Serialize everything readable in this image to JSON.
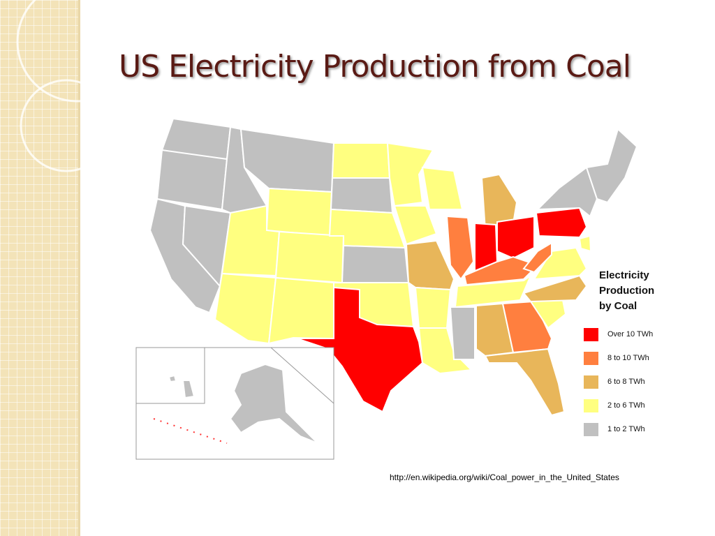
{
  "title": "US Electricity Production from Coal",
  "legend": {
    "title": "Electricity Production by Coal",
    "items": [
      {
        "label": "Over 10 TWh",
        "color": "#ff0000"
      },
      {
        "label": "8 to 10 TWh",
        "color": "#ff7f3f"
      },
      {
        "label": "6 to 8 TWh",
        "color": "#e8b65a"
      },
      {
        "label": "2 to 6 TWh",
        "color": "#ffff80"
      },
      {
        "label": "1 to 2 TWh",
        "color": "#c0c0c0"
      }
    ]
  },
  "source": "http://en.wikipedia.org/wiki/Coal_power_in_the_United_States"
}
